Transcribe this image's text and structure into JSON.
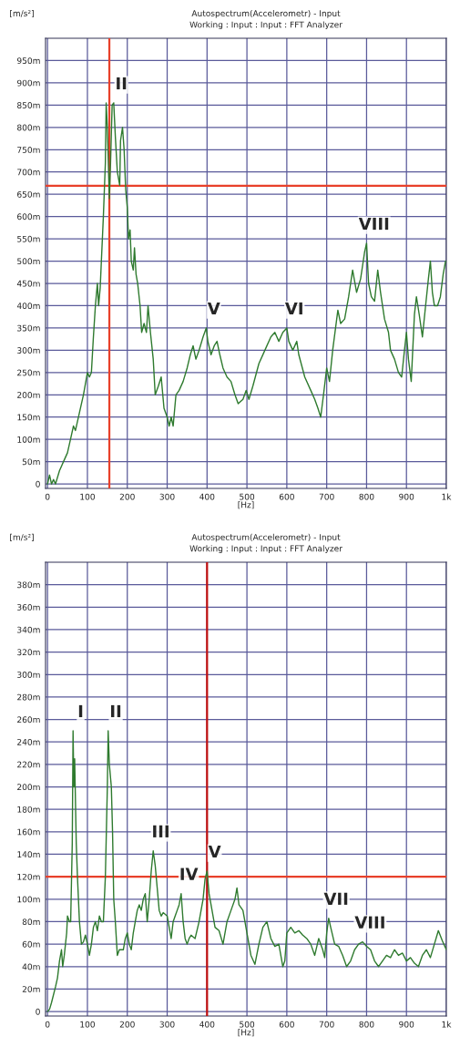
{
  "chart_data": [
    {
      "type": "line",
      "title": "Autospectrum(Accelerometr) - Input",
      "subtitle": "Working : Input : Input : FFT Analyzer",
      "xlabel": "[Hz]",
      "ylabel": "[m/s²]",
      "grid": true,
      "legend": false,
      "marker": "none",
      "line_style": "solid",
      "xlim": [
        -5,
        1000
      ],
      "xticks": [
        0,
        100,
        200,
        300,
        400,
        500,
        600,
        700,
        800,
        900,
        {
          "value": 1000,
          "label": "1k"
        }
      ],
      "ylim": [
        -10,
        1000
      ],
      "yticks": [
        0,
        {
          "value": 50,
          "label": "50m"
        },
        {
          "value": 100,
          "label": "100m"
        },
        {
          "value": 150,
          "label": "150m"
        },
        {
          "value": 200,
          "label": "200m"
        },
        {
          "value": 250,
          "label": "250m"
        },
        {
          "value": 300,
          "label": "300m"
        },
        {
          "value": 350,
          "label": "350m"
        },
        {
          "value": 400,
          "label": "400m"
        },
        {
          "value": 450,
          "label": "450m"
        },
        {
          "value": 500,
          "label": "500m"
        },
        {
          "value": 550,
          "label": "550m"
        },
        {
          "value": 600,
          "label": "600m"
        },
        {
          "value": 650,
          "label": "650m"
        },
        {
          "value": 700,
          "label": "700m"
        },
        {
          "value": 750,
          "label": "750m"
        },
        {
          "value": 800,
          "label": "800m"
        },
        {
          "value": 850,
          "label": "850m"
        },
        {
          "value": 900,
          "label": "900m"
        },
        {
          "value": 950,
          "label": "950m"
        }
      ],
      "series": [
        {
          "color": "#2e7a2e",
          "x": [
            0,
            5,
            10,
            15,
            20,
            30,
            40,
            50,
            60,
            65,
            70,
            80,
            90,
            100,
            105,
            110,
            115,
            120,
            125,
            128,
            132,
            135,
            140,
            145,
            147,
            150,
            155,
            158,
            162,
            166,
            170,
            175,
            181,
            183,
            188,
            192,
            196,
            200,
            203,
            207,
            210,
            215,
            218,
            222,
            226,
            232,
            236,
            242,
            248,
            252,
            258,
            265,
            270,
            278,
            285,
            292,
            300,
            305,
            310,
            315,
            322,
            330,
            340,
            350,
            358,
            365,
            372,
            380,
            390,
            398,
            402,
            410,
            418,
            425,
            432,
            440,
            450,
            460,
            470,
            478,
            490,
            498,
            505,
            515,
            530,
            545,
            560,
            570,
            580,
            590,
            600,
            605,
            615,
            625,
            630,
            645,
            660,
            670,
            678,
            685,
            692,
            700,
            707,
            715,
            728,
            735,
            745,
            755,
            765,
            775,
            785,
            795,
            800,
            805,
            812,
            820,
            828,
            835,
            845,
            855,
            860,
            870,
            880,
            888,
            895,
            900,
            905,
            912,
            920,
            925,
            932,
            940,
            948,
            955,
            960,
            965,
            970,
            978,
            985,
            992,
            998
          ],
          "values": [
            0,
            20,
            0,
            10,
            0,
            30,
            50,
            70,
            110,
            130,
            120,
            160,
            200,
            250,
            240,
            250,
            330,
            400,
            450,
            400,
            440,
            500,
            600,
            720,
            855,
            800,
            640,
            720,
            850,
            855,
            780,
            700,
            670,
            770,
            800,
            750,
            660,
            620,
            550,
            570,
            500,
            480,
            530,
            470,
            450,
            400,
            340,
            360,
            340,
            400,
            340,
            280,
            200,
            220,
            240,
            170,
            150,
            130,
            150,
            130,
            200,
            210,
            230,
            260,
            290,
            310,
            280,
            300,
            330,
            350,
            320,
            290,
            310,
            320,
            290,
            260,
            240,
            230,
            200,
            180,
            190,
            210,
            190,
            220,
            270,
            300,
            330,
            340,
            320,
            340,
            350,
            320,
            300,
            320,
            290,
            240,
            210,
            190,
            170,
            150,
            200,
            260,
            230,
            300,
            390,
            360,
            370,
            420,
            480,
            430,
            460,
            520,
            540,
            450,
            420,
            410,
            480,
            430,
            370,
            340,
            300,
            280,
            250,
            240,
            300,
            340,
            280,
            230,
            380,
            420,
            380,
            330,
            400,
            460,
            500,
            430,
            400,
            400,
            420,
            470,
            500
          ]
        }
      ],
      "ref_lines": [
        {
          "axis": "x",
          "value": 155,
          "color": "#e8402a"
        },
        {
          "axis": "y",
          "value": 669,
          "color": "#e8402a"
        }
      ],
      "annotations": [
        {
          "text": "II",
          "x": 166,
          "y": 855
        },
        {
          "text": "V",
          "x": 398,
          "y": 350
        },
        {
          "text": "VI",
          "x": 600,
          "y": 350
        },
        {
          "text": "VIII",
          "x": 800,
          "y": 540
        }
      ]
    },
    {
      "type": "line",
      "title": "Autospectrum(Accelerometr) - Input",
      "subtitle": "Working : Input : Input : FFT Analyzer",
      "xlabel": "[Hz]",
      "ylabel": "[m/s²]",
      "grid": true,
      "legend": false,
      "marker": "none",
      "line_style": "solid",
      "xlim": [
        -5,
        1000
      ],
      "xticks": [
        0,
        100,
        200,
        300,
        400,
        500,
        600,
        700,
        800,
        900,
        {
          "value": 1000,
          "label": "1k"
        }
      ],
      "ylim": [
        -4,
        400
      ],
      "yticks": [
        0,
        {
          "value": 20,
          "label": "20m"
        },
        {
          "value": 40,
          "label": "40m"
        },
        {
          "value": 60,
          "label": "60m"
        },
        {
          "value": 80,
          "label": "80m"
        },
        {
          "value": 100,
          "label": "100m"
        },
        {
          "value": 120,
          "label": "120m"
        },
        {
          "value": 140,
          "label": "140m"
        },
        {
          "value": 160,
          "label": "160m"
        },
        {
          "value": 180,
          "label": "180m"
        },
        {
          "value": 200,
          "label": "200m"
        },
        {
          "value": 220,
          "label": "220m"
        },
        {
          "value": 240,
          "label": "240m"
        },
        {
          "value": 260,
          "label": "260m"
        },
        {
          "value": 280,
          "label": "280m"
        },
        {
          "value": 300,
          "label": "300m"
        },
        {
          "value": 320,
          "label": "320m"
        },
        {
          "value": 340,
          "label": "340m"
        },
        {
          "value": 360,
          "label": "360m"
        },
        {
          "value": 380,
          "label": "380m"
        }
      ],
      "series": [
        {
          "color": "#2e7a2e",
          "x": [
            0,
            5,
            10,
            20,
            25,
            30,
            35,
            38,
            42,
            48,
            50,
            55,
            58,
            62,
            64,
            66,
            68,
            72,
            75,
            80,
            85,
            90,
            95,
            100,
            105,
            110,
            115,
            120,
            125,
            130,
            135,
            140,
            145,
            150,
            152,
            155,
            160,
            163,
            166,
            170,
            175,
            180,
            190,
            195,
            200,
            205,
            210,
            215,
            220,
            225,
            230,
            235,
            240,
            245,
            250,
            255,
            260,
            265,
            270,
            275,
            280,
            285,
            290,
            300,
            305,
            310,
            315,
            320,
            325,
            330,
            335,
            340,
            345,
            350,
            355,
            360,
            370,
            380,
            390,
            395,
            400,
            405,
            410,
            420,
            430,
            440,
            450,
            460,
            470,
            475,
            480,
            490,
            500,
            510,
            520,
            530,
            540,
            550,
            560,
            570,
            580,
            590,
            595,
            600,
            610,
            620,
            630,
            640,
            650,
            660,
            670,
            680,
            690,
            695,
            700,
            705,
            710,
            720,
            730,
            740,
            750,
            760,
            770,
            780,
            790,
            800,
            810,
            820,
            830,
            840,
            850,
            860,
            870,
            880,
            890,
            900,
            910,
            920,
            930,
            940,
            950,
            960,
            970,
            980,
            990,
            1000
          ],
          "values": [
            0,
            2,
            8,
            22,
            30,
            45,
            55,
            40,
            50,
            70,
            85,
            80,
            80,
            150,
            250,
            200,
            225,
            150,
            120,
            80,
            60,
            62,
            68,
            60,
            50,
            60,
            75,
            80,
            72,
            85,
            80,
            80,
            120,
            200,
            250,
            220,
            200,
            160,
            100,
            80,
            50,
            55,
            55,
            65,
            70,
            60,
            55,
            70,
            80,
            90,
            95,
            90,
            100,
            105,
            80,
            100,
            125,
            143,
            130,
            110,
            90,
            85,
            88,
            85,
            75,
            65,
            80,
            85,
            90,
            95,
            105,
            80,
            65,
            60,
            65,
            68,
            65,
            80,
            100,
            118,
            125,
            105,
            95,
            75,
            72,
            60,
            80,
            90,
            100,
            110,
            95,
            90,
            70,
            50,
            42,
            60,
            75,
            80,
            65,
            58,
            60,
            40,
            45,
            70,
            75,
            70,
            72,
            68,
            65,
            60,
            50,
            65,
            55,
            48,
            70,
            83,
            75,
            60,
            58,
            50,
            40,
            45,
            55,
            60,
            62,
            58,
            55,
            45,
            40,
            45,
            50,
            48,
            55,
            50,
            52,
            45,
            48,
            43,
            40,
            50,
            55,
            48,
            60,
            72,
            63,
            55
          ]
        }
      ],
      "ref_lines": [
        {
          "axis": "x",
          "value": 400,
          "color": "#c01010"
        },
        {
          "axis": "y",
          "value": 120,
          "color": "#e8402a"
        }
      ],
      "annotations": [
        {
          "text": "I",
          "x": 64,
          "y": 250
        },
        {
          "text": "II",
          "x": 152,
          "y": 250
        },
        {
          "text": "III",
          "x": 265,
          "y": 143
        },
        {
          "text": "IV",
          "x": 335,
          "y": 105
        },
        {
          "text": "V",
          "x": 400,
          "y": 125
        },
        {
          "text": "VII",
          "x": 705,
          "y": 83
        },
        {
          "text": "VIII",
          "x": 790,
          "y": 62
        }
      ]
    }
  ]
}
